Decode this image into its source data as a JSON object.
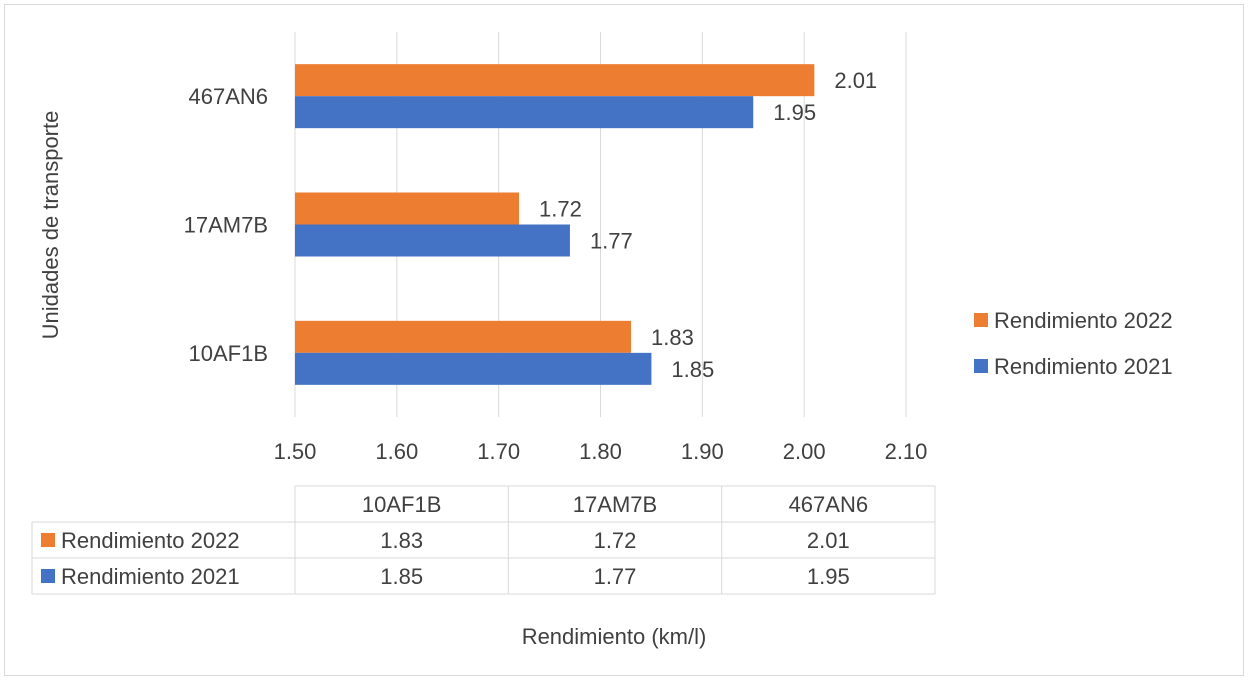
{
  "chart_data": {
    "type": "bar",
    "orientation": "horizontal",
    "categories": [
      "10AF1B",
      "17AM7B",
      "467AN6"
    ],
    "series": [
      {
        "name": "Rendimiento 2022",
        "values": [
          1.83,
          1.72,
          2.01
        ],
        "color": "#ED7D31"
      },
      {
        "name": "Rendimiento 2021",
        "values": [
          1.85,
          1.77,
          1.95
        ],
        "color": "#4472C4"
      }
    ],
    "xlabel": "Rendimiento (km/l)",
    "ylabel": "Unidades de transporte",
    "xlim": [
      1.5,
      2.1
    ],
    "xticks": [
      "1.50",
      "1.60",
      "1.70",
      "1.80",
      "1.90",
      "2.00",
      "2.10"
    ],
    "grid": true,
    "legend_position": "right",
    "data_labels": true,
    "data_table": true
  }
}
